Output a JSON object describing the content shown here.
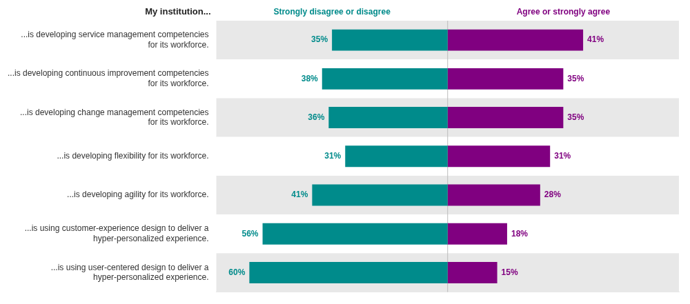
{
  "chart_data": {
    "type": "bar",
    "orientation": "horizontal",
    "title": "My institution...",
    "categories": [
      "...is developing service management competencies\nfor its workforce.",
      "...is developing continuous improvement competencies\nfor its workforce.",
      "...is developing change management competencies\nfor its workforce.",
      "...is developing flexibility for its workforce.",
      "...is developing agility for its workforce.",
      "...is using customer-experience design to deliver a\nhyper-personalized experience.",
      "...is using user-centered design to deliver a\nhyper-personalized experience."
    ],
    "series": [
      {
        "name": "Strongly disagree or disagree",
        "color": "#008B8B",
        "values": [
          35,
          38,
          36,
          31,
          41,
          56,
          60
        ],
        "value_labels": [
          "35%",
          "38%",
          "36%",
          "31%",
          "41%",
          "56%",
          "60%"
        ]
      },
      {
        "name": "Agree or strongly agree",
        "color": "#800080",
        "values": [
          41,
          35,
          35,
          31,
          28,
          18,
          15
        ],
        "value_labels": [
          "41%",
          "35%",
          "35%",
          "31%",
          "28%",
          "18%",
          "15%"
        ]
      }
    ],
    "xlim": [
      -70,
      70
    ],
    "xticks": [],
    "grid": false,
    "data_labels": true,
    "tick_labels": "y"
  }
}
